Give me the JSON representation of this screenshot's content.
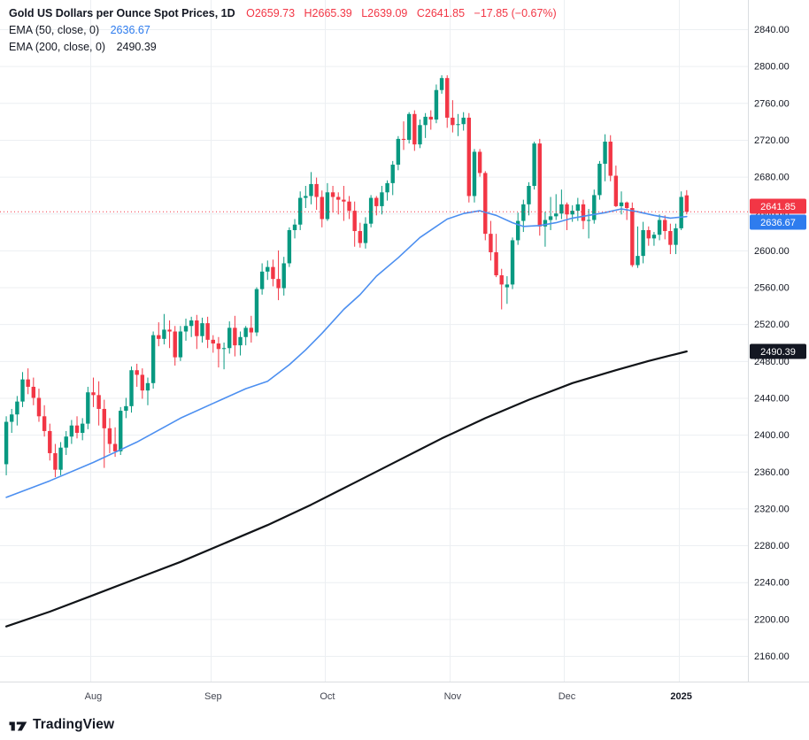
{
  "header": {
    "title": "Gold US Dollars per Ounce Spot Prices, 1D",
    "ohlc": {
      "open": "O2659.73",
      "high": "H2665.39",
      "low": "L2639.09",
      "close": "C2641.85",
      "change": "−17.85 (−0.67%)"
    },
    "indicators": [
      {
        "label": "EMA (50, close, 0)",
        "value": "2636.67",
        "color": "#2E7CEE"
      },
      {
        "label": "EMA (200, close, 0)",
        "value": "2490.39",
        "color": "#131722"
      }
    ]
  },
  "footer": {
    "brand": "TradingView"
  },
  "chart_data": {
    "type": "candlestick",
    "title": "Gold US Dollars per Ounce Spot Prices",
    "interval": "1D",
    "y_axis": {
      "min": 2160,
      "max": 2840,
      "tick_step": 40,
      "tick_format": "2"
    },
    "x_ticks": [
      {
        "label": "Aug",
        "index": 16
      },
      {
        "label": "Sep",
        "index": 38
      },
      {
        "label": "Oct",
        "index": 59
      },
      {
        "label": "Nov",
        "index": 82
      },
      {
        "label": "Dec",
        "index": 103
      },
      {
        "label": "2025",
        "index": 124,
        "emphasis": true
      }
    ],
    "candles": [
      [
        2368,
        2420,
        2356,
        2414
      ],
      [
        2414,
        2428,
        2402,
        2422
      ],
      [
        2422,
        2442,
        2410,
        2436
      ],
      [
        2436,
        2468,
        2430,
        2460
      ],
      [
        2460,
        2472,
        2444,
        2452
      ],
      [
        2452,
        2462,
        2432,
        2440
      ],
      [
        2440,
        2450,
        2414,
        2420
      ],
      [
        2420,
        2432,
        2398,
        2404
      ],
      [
        2404,
        2412,
        2372,
        2380
      ],
      [
        2380,
        2390,
        2354,
        2362
      ],
      [
        2362,
        2392,
        2356,
        2386
      ],
      [
        2386,
        2404,
        2378,
        2398
      ],
      [
        2398,
        2416,
        2390,
        2410
      ],
      [
        2410,
        2420,
        2396,
        2402
      ],
      [
        2402,
        2418,
        2394,
        2412
      ],
      [
        2412,
        2452,
        2406,
        2446
      ],
      [
        2446,
        2462,
        2430,
        2443
      ],
      [
        2443,
        2458,
        2410,
        2428
      ],
      [
        2428,
        2438,
        2364,
        2407
      ],
      [
        2407,
        2418,
        2380,
        2390
      ],
      [
        2390,
        2408,
        2376,
        2382
      ],
      [
        2382,
        2430,
        2378,
        2426
      ],
      [
        2426,
        2440,
        2418,
        2431
      ],
      [
        2431,
        2474,
        2424,
        2470
      ],
      [
        2470,
        2477,
        2452,
        2465
      ],
      [
        2465,
        2472,
        2439,
        2448
      ],
      [
        2448,
        2462,
        2432,
        2456
      ],
      [
        2456,
        2512,
        2450,
        2508
      ],
      [
        2508,
        2522,
        2496,
        2504
      ],
      [
        2504,
        2531,
        2498,
        2514
      ],
      [
        2514,
        2524,
        2494,
        2512
      ],
      [
        2512,
        2518,
        2475,
        2484
      ],
      [
        2484,
        2518,
        2480,
        2512
      ],
      [
        2512,
        2526,
        2502,
        2518
      ],
      [
        2518,
        2528,
        2506,
        2524
      ],
      [
        2524,
        2530,
        2493,
        2507
      ],
      [
        2507,
        2527,
        2500,
        2521
      ],
      [
        2521,
        2528,
        2494,
        2503
      ],
      [
        2503,
        2508,
        2489,
        2499
      ],
      [
        2499,
        2506,
        2473,
        2493
      ],
      [
        2493,
        2500,
        2471,
        2494
      ],
      [
        2494,
        2523,
        2488,
        2516
      ],
      [
        2516,
        2529,
        2485,
        2497
      ],
      [
        2497,
        2512,
        2486,
        2506
      ],
      [
        2506,
        2518,
        2497,
        2516
      ],
      [
        2516,
        2529,
        2500,
        2511
      ],
      [
        2511,
        2560,
        2507,
        2558
      ],
      [
        2558,
        2586,
        2552,
        2577
      ],
      [
        2577,
        2589,
        2568,
        2582
      ],
      [
        2582,
        2590,
        2561,
        2569
      ],
      [
        2569,
        2600,
        2546,
        2559
      ],
      [
        2559,
        2593,
        2551,
        2586
      ],
      [
        2586,
        2625,
        2582,
        2622
      ],
      [
        2622,
        2634,
        2613,
        2628
      ],
      [
        2628,
        2664,
        2622,
        2657
      ],
      [
        2657,
        2670,
        2646,
        2659
      ],
      [
        2659,
        2685,
        2650,
        2672
      ],
      [
        2672,
        2679,
        2644,
        2658
      ],
      [
        2658,
        2665,
        2625,
        2634
      ],
      [
        2634,
        2673,
        2632,
        2663
      ],
      [
        2663,
        2670,
        2641,
        2658
      ],
      [
        2658,
        2663,
        2639,
        2655
      ],
      [
        2655,
        2670,
        2632,
        2653
      ],
      [
        2653,
        2659,
        2634,
        2643
      ],
      [
        2643,
        2653,
        2604,
        2621
      ],
      [
        2621,
        2630,
        2603,
        2608
      ],
      [
        2608,
        2636,
        2602,
        2629
      ],
      [
        2629,
        2660,
        2625,
        2657
      ],
      [
        2657,
        2659,
        2638,
        2648
      ],
      [
        2648,
        2670,
        2639,
        2663
      ],
      [
        2663,
        2676,
        2654,
        2673
      ],
      [
        2673,
        2697,
        2660,
        2693
      ],
      [
        2693,
        2724,
        2687,
        2721
      ],
      [
        2721,
        2740,
        2709,
        2720
      ],
      [
        2720,
        2750,
        2716,
        2748
      ],
      [
        2748,
        2752,
        2708,
        2715
      ],
      [
        2715,
        2742,
        2711,
        2736
      ],
      [
        2736,
        2749,
        2722,
        2745
      ],
      [
        2745,
        2752,
        2731,
        2742
      ],
      [
        2742,
        2780,
        2738,
        2774
      ],
      [
        2774,
        2790,
        2770,
        2787
      ],
      [
        2787,
        2790,
        2733,
        2744
      ],
      [
        2744,
        2763,
        2728,
        2736
      ],
      [
        2736,
        2748,
        2724,
        2737
      ],
      [
        2737,
        2750,
        2730,
        2744
      ],
      [
        2744,
        2749,
        2652,
        2659
      ],
      [
        2659,
        2710,
        2652,
        2707
      ],
      [
        2707,
        2710,
        2680,
        2684
      ],
      [
        2684,
        2686,
        2611,
        2618
      ],
      [
        2618,
        2632,
        2589,
        2598
      ],
      [
        2598,
        2618,
        2571,
        2573
      ],
      [
        2573,
        2580,
        2536,
        2563
      ],
      [
        2560,
        2572,
        2542,
        2563
      ],
      [
        2563,
        2614,
        2558,
        2611
      ],
      [
        2611,
        2641,
        2606,
        2632
      ],
      [
        2632,
        2655,
        2620,
        2650
      ],
      [
        2650,
        2674,
        2638,
        2670
      ],
      [
        2670,
        2718,
        2666,
        2716
      ],
      [
        2716,
        2721,
        2616,
        2626
      ],
      [
        2626,
        2642,
        2604,
        2633
      ],
      [
        2633,
        2658,
        2622,
        2637
      ],
      [
        2637,
        2661,
        2633,
        2640
      ],
      [
        2640,
        2666,
        2634,
        2650
      ],
      [
        2650,
        2652,
        2622,
        2639
      ],
      [
        2639,
        2649,
        2631,
        2643
      ],
      [
        2643,
        2657,
        2632,
        2650
      ],
      [
        2650,
        2655,
        2623,
        2632
      ],
      [
        2632,
        2645,
        2613,
        2633
      ],
      [
        2633,
        2666,
        2629,
        2660
      ],
      [
        2660,
        2697,
        2655,
        2694
      ],
      [
        2694,
        2726,
        2675,
        2718
      ],
      [
        2718,
        2725,
        2675,
        2681
      ],
      [
        2681,
        2692,
        2647,
        2648
      ],
      [
        2648,
        2664,
        2639,
        2652
      ],
      [
        2652,
        2653,
        2633,
        2646
      ],
      [
        2646,
        2652,
        2582,
        2584
      ],
      [
        2584,
        2626,
        2581,
        2594
      ],
      [
        2594,
        2631,
        2586,
        2622
      ],
      [
        2622,
        2626,
        2605,
        2613
      ],
      [
        2613,
        2620,
        2605,
        2617
      ],
      [
        2617,
        2639,
        2611,
        2633
      ],
      [
        2633,
        2638,
        2612,
        2621
      ],
      [
        2621,
        2629,
        2596,
        2606
      ],
      [
        2606,
        2629,
        2596,
        2624
      ],
      [
        2624,
        2664,
        2622,
        2658
      ],
      [
        2659.73,
        2665.39,
        2639.09,
        2641.85
      ]
    ],
    "series": [
      {
        "name": "EMA 50",
        "color": "#4C8FF0",
        "width": 1.6,
        "points": [
          [
            0,
            2332
          ],
          [
            8,
            2350
          ],
          [
            16,
            2370
          ],
          [
            24,
            2392
          ],
          [
            32,
            2418
          ],
          [
            38,
            2434
          ],
          [
            44,
            2450
          ],
          [
            48,
            2458
          ],
          [
            52,
            2476
          ],
          [
            55,
            2492
          ],
          [
            58,
            2510
          ],
          [
            62,
            2536
          ],
          [
            65,
            2552
          ],
          [
            68,
            2572
          ],
          [
            72,
            2592
          ],
          [
            76,
            2614
          ],
          [
            79,
            2626
          ],
          [
            81,
            2634
          ],
          [
            84,
            2640
          ],
          [
            87,
            2643
          ],
          [
            90,
            2638
          ],
          [
            93,
            2630
          ],
          [
            95,
            2626
          ],
          [
            98,
            2627
          ],
          [
            101,
            2630
          ],
          [
            104,
            2635
          ],
          [
            107,
            2638
          ],
          [
            110,
            2641
          ],
          [
            113,
            2645
          ],
          [
            116,
            2642
          ],
          [
            119,
            2638
          ],
          [
            122,
            2635
          ],
          [
            125,
            2636.67
          ]
        ]
      },
      {
        "name": "EMA 200",
        "color": "#111418",
        "width": 2.2,
        "points": [
          [
            0,
            2192
          ],
          [
            8,
            2208
          ],
          [
            16,
            2226
          ],
          [
            24,
            2244
          ],
          [
            32,
            2262
          ],
          [
            40,
            2282
          ],
          [
            48,
            2302
          ],
          [
            56,
            2324
          ],
          [
            64,
            2348
          ],
          [
            72,
            2372
          ],
          [
            80,
            2396
          ],
          [
            88,
            2418
          ],
          [
            96,
            2438
          ],
          [
            104,
            2456
          ],
          [
            112,
            2470
          ],
          [
            118,
            2480
          ],
          [
            122,
            2486
          ],
          [
            125,
            2490.39
          ]
        ]
      }
    ],
    "price_line": {
      "value": 2641.85,
      "color": "#F23645"
    },
    "axis_badges": [
      {
        "text": "2641.85",
        "color": "#F23645",
        "price": 2641.85
      },
      {
        "text": "2636.67",
        "color": "#2E7CEE",
        "price": 2636.67
      },
      {
        "text": "2490.39",
        "color": "#131722",
        "price": 2490.39
      }
    ],
    "colors": {
      "up": "#089981",
      "down": "#F23645",
      "grid": "#ECEFF2",
      "axis_line": "#DADDE0",
      "text": "#131722",
      "time_text": "#434651",
      "background": "#FFFFFF"
    }
  }
}
